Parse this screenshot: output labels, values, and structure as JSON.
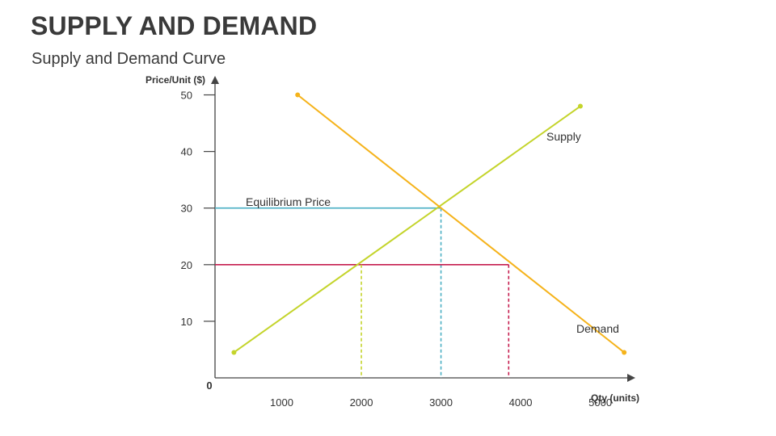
{
  "slide": {
    "title": "SUPPLY AND DEMAND",
    "subtitle": "Supply and Demand Curve"
  },
  "colors": {
    "supply": "#c4d42b",
    "demand": "#f5b31b",
    "equilibrium": "#4aafc3",
    "price20": "#c51d4f",
    "axis": "#444444"
  },
  "chart_data": {
    "type": "line",
    "xlabel": "Qty (units)",
    "ylabel": "Price/Unit ($)",
    "origin_label": "0",
    "xlim": [
      0,
      5400
    ],
    "ylim": [
      0,
      52.5
    ],
    "x_ticks": [
      1000,
      2000,
      3000,
      4000,
      5000
    ],
    "x_tick_labels": [
      "1000",
      "2000",
      "3000",
      "4000",
      "5000"
    ],
    "y_ticks": [
      10,
      20,
      30,
      40,
      50
    ],
    "y_tick_labels": [
      "10",
      "20",
      "30",
      "40",
      "50"
    ],
    "grid": false,
    "series": [
      {
        "name": "Supply",
        "color": "#c4d42b",
        "points": [
          [
            400,
            4.5
          ],
          [
            4750,
            48
          ]
        ]
      },
      {
        "name": "Demand",
        "color": "#f5b31b",
        "points": [
          [
            1200,
            50
          ],
          [
            5300,
            4.5
          ]
        ]
      }
    ],
    "reference_lines": [
      {
        "label": "Equilibrium Price",
        "color": "#4aafc3",
        "price": 30,
        "qty": 3000,
        "style": "solid-horizontal, dashed-vertical"
      },
      {
        "label": "",
        "color": "#c51d4f",
        "price": 20,
        "qty_from": 2000,
        "qty_to": 3850,
        "style": "solid-horizontal, dashed-vertical at right"
      },
      {
        "label": "",
        "color": "#c4d42b",
        "qty": 2000,
        "price": 20,
        "style": "dashed-vertical"
      }
    ],
    "annotations": [
      "Equilibrium Price"
    ]
  }
}
